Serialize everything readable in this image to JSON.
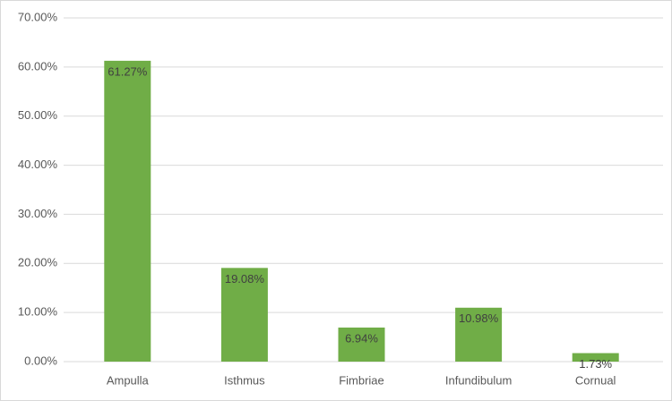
{
  "chart_data": {
    "type": "bar",
    "categories": [
      "Ampulla",
      "Isthmus",
      "Fimbriae",
      "Infundibulum",
      "Cornual"
    ],
    "values": [
      61.27,
      19.08,
      6.94,
      10.98,
      1.73
    ],
    "value_labels": [
      "61.27%",
      "19.08%",
      "6.94%",
      "10.98%",
      "1.73%"
    ],
    "color": "#70ad47",
    "ylim": [
      0,
      70
    ],
    "yticks": [
      {
        "value": 0,
        "label": "0.00%"
      },
      {
        "value": 10,
        "label": "10.00%"
      },
      {
        "value": 20,
        "label": "20.00%"
      },
      {
        "value": 30,
        "label": "30.00%"
      },
      {
        "value": 40,
        "label": "40.00%"
      },
      {
        "value": 50,
        "label": "50.00%"
      },
      {
        "value": 60,
        "label": "60.00%"
      },
      {
        "value": 70,
        "label": "70.00%"
      }
    ],
    "grid": true
  }
}
